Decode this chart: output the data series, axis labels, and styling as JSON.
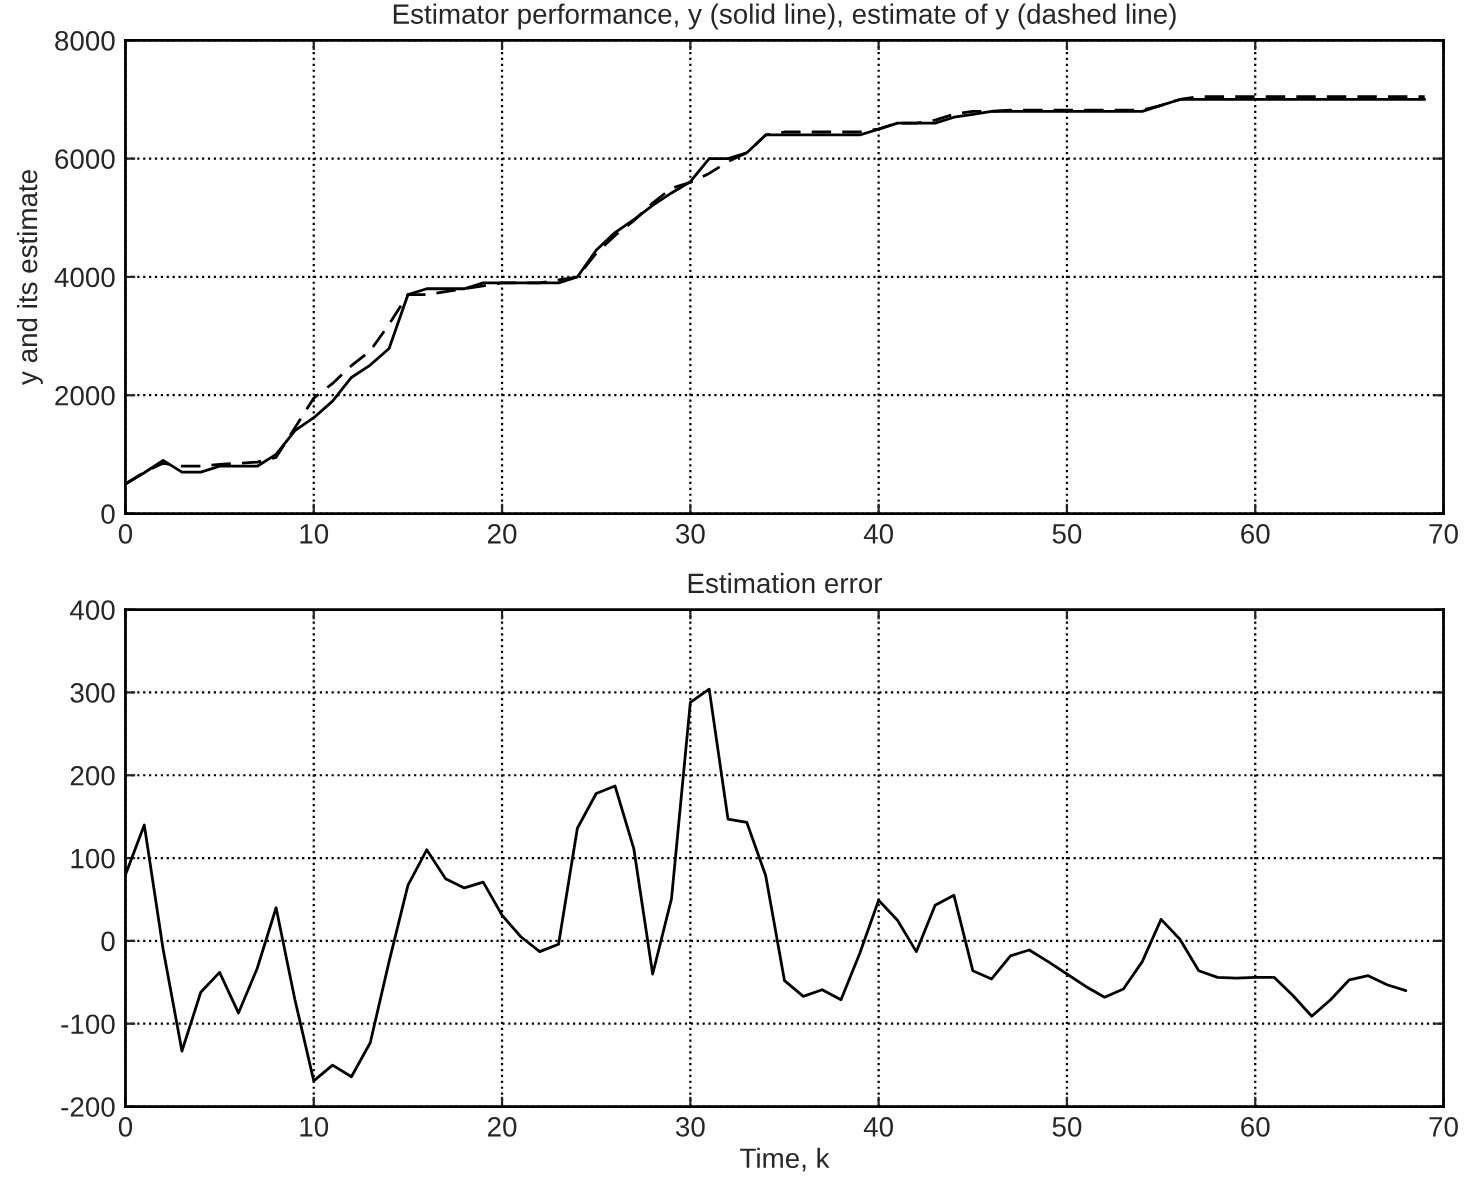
{
  "chart_data": [
    {
      "type": "line",
      "title": "Estimator performance, y (solid line), estimate of y (dashed line)",
      "ylabel": "y and its estimate",
      "x": [
        0,
        1,
        2,
        3,
        4,
        5,
        6,
        7,
        8,
        9,
        10,
        11,
        12,
        13,
        14,
        15,
        16,
        17,
        18,
        19,
        20,
        21,
        22,
        23,
        24,
        25,
        26,
        27,
        28,
        29,
        30,
        31,
        32,
        33,
        34,
        35,
        36,
        37,
        38,
        39,
        40,
        41,
        42,
        43,
        44,
        45,
        46,
        47,
        48,
        49,
        50,
        51,
        52,
        53,
        54,
        55,
        56,
        57,
        58,
        59,
        60,
        61,
        62,
        63,
        64,
        65,
        66,
        67,
        68,
        69
      ],
      "series": [
        {
          "color": "#000000",
          "line_style": "solid",
          "values": [
            500,
            690,
            900,
            700,
            700,
            800,
            800,
            800,
            1000,
            1400,
            1620,
            1900,
            2300,
            2510,
            2790,
            3700,
            3800,
            3800,
            3800,
            3900,
            3900,
            3900,
            3900,
            3900,
            4000,
            4450,
            4750,
            4970,
            5210,
            5420,
            5610,
            6000,
            6000,
            6100,
            6400,
            6400,
            6400,
            6400,
            6400,
            6400,
            6500,
            6600,
            6600,
            6600,
            6700,
            6750,
            6800,
            6800,
            6800,
            6800,
            6800,
            6800,
            6800,
            6800,
            6800,
            6900,
            7000,
            7000,
            7000,
            7000,
            7000,
            7000,
            7000,
            7000,
            7000,
            7000,
            7000,
            7000,
            7000,
            7000
          ]
        },
        {
          "color": "#000000",
          "line_style": "dashed",
          "values": [
            500,
            700,
            850,
            800,
            800,
            830,
            850,
            870,
            950,
            1450,
            1950,
            2200,
            2500,
            2750,
            3200,
            3700,
            3700,
            3750,
            3800,
            3850,
            3900,
            3900,
            3900,
            3950,
            4000,
            4400,
            4700,
            4950,
            5250,
            5500,
            5600,
            5750,
            5950,
            6100,
            6400,
            6450,
            6450,
            6450,
            6450,
            6450,
            6500,
            6600,
            6600,
            6650,
            6750,
            6800,
            6800,
            6820,
            6820,
            6820,
            6820,
            6820,
            6820,
            6820,
            6820,
            6900,
            7000,
            7050,
            7050,
            7050,
            7050,
            7050,
            7050,
            7050,
            7050,
            7050,
            7050,
            7050,
            7050,
            7050
          ]
        }
      ],
      "xlim": [
        0,
        70
      ],
      "xticks": [
        0,
        10,
        20,
        30,
        40,
        50,
        60,
        70
      ],
      "ylim": [
        0,
        8000
      ],
      "yticks": [
        0,
        2000,
        4000,
        6000,
        8000
      ],
      "grid": true
    },
    {
      "type": "line",
      "title": "Estimation error",
      "xlabel": "Time, k",
      "x": [
        0,
        1,
        2,
        3,
        4,
        5,
        6,
        7,
        8,
        9,
        10,
        11,
        12,
        13,
        14,
        15,
        16,
        17,
        18,
        19,
        20,
        21,
        22,
        23,
        24,
        25,
        26,
        27,
        28,
        29,
        30,
        31,
        32,
        33,
        34,
        35,
        36,
        37,
        38,
        39,
        40,
        41,
        42,
        43,
        44,
        45,
        46,
        47,
        48,
        49,
        50,
        51,
        52,
        53,
        54,
        55,
        56,
        57,
        58,
        59,
        60,
        61,
        62,
        63,
        64,
        65,
        66,
        67,
        68
      ],
      "series": [
        {
          "color": "#000000",
          "line_style": "solid",
          "values": [
            80,
            140,
            -10,
            -133,
            -62,
            -38,
            -87,
            -33,
            40,
            -71,
            -169,
            -150,
            -164,
            -123,
            -25,
            67,
            110,
            75,
            64,
            71,
            31,
            5,
            -13,
            -4,
            136,
            178,
            187,
            111,
            -40,
            51,
            288,
            304,
            147,
            143,
            79,
            -48,
            -67,
            -59,
            -71,
            -15,
            49,
            25,
            -13,
            43,
            55,
            -36,
            -46,
            -18,
            -11,
            -25,
            -40,
            -55,
            -68,
            -58,
            -25,
            26,
            2,
            -36,
            -44,
            -45,
            -44,
            -44,
            -66,
            -91,
            -71,
            -47,
            -42,
            -53,
            -60
          ]
        }
      ],
      "xlim": [
        0,
        70
      ],
      "xticks": [
        0,
        10,
        20,
        30,
        40,
        50,
        60,
        70
      ],
      "ylim": [
        -200,
        400
      ],
      "yticks": [
        -200,
        -100,
        0,
        100,
        200,
        300,
        400
      ],
      "grid": true
    }
  ]
}
